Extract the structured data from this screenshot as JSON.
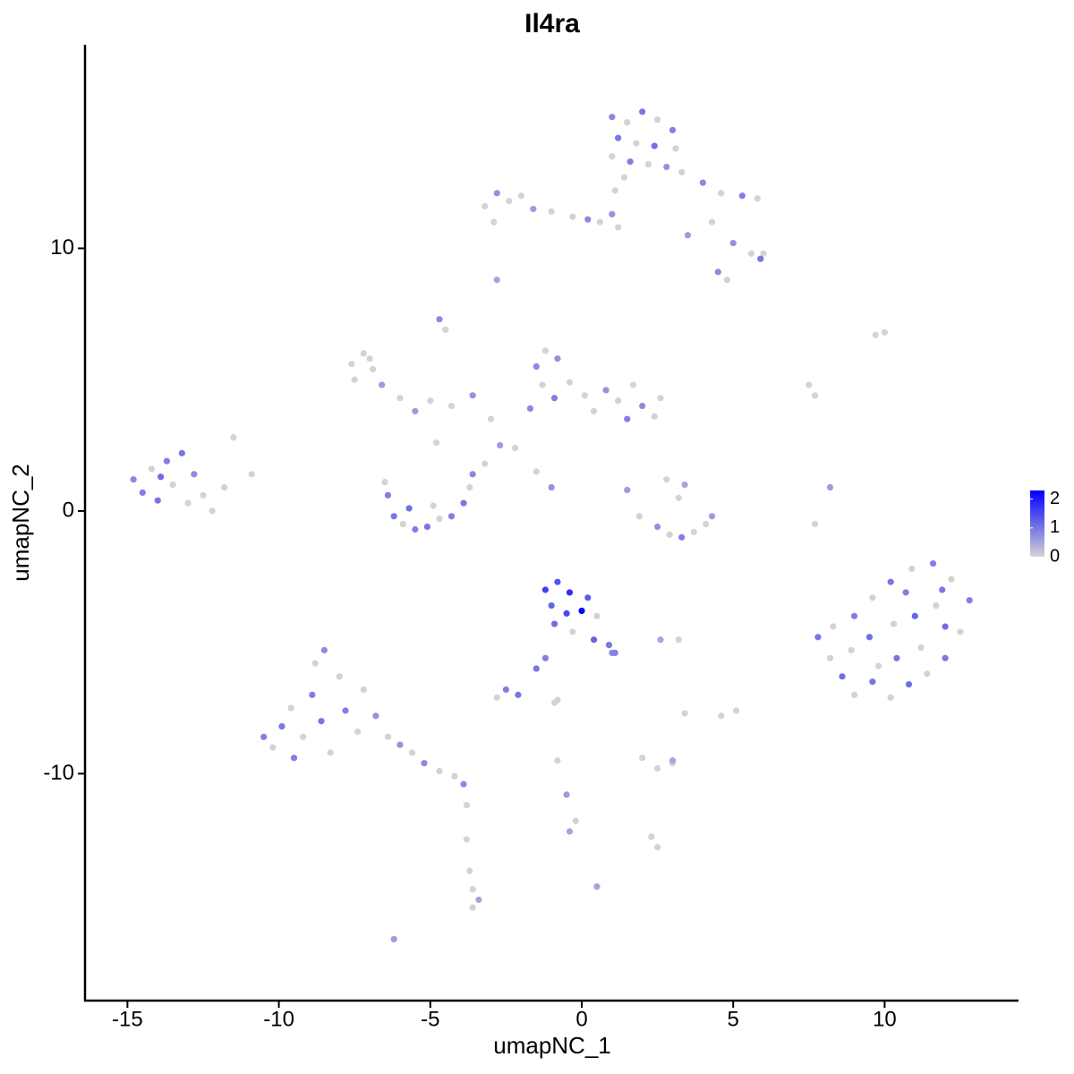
{
  "chart_data": {
    "type": "scatter",
    "title": "Il4ra",
    "x_label": "umapNC_1",
    "y_label": "umapNC_2",
    "xlim": [
      -16.4,
      14.42
    ],
    "ylim": [
      -18.64,
      17.75
    ],
    "xticks": [
      -15,
      -10,
      -5,
      0,
      5,
      10
    ],
    "yticks": [
      -10,
      0,
      10
    ],
    "colorbar": {
      "lim": [
        0,
        2.3
      ],
      "ticks": [
        0,
        1,
        2
      ],
      "low_color": "#d3d3d3",
      "high_color": "#0000ff"
    },
    "x": [
      1.0,
      1.5,
      2.0,
      2.5,
      3.0,
      1.2,
      1.8,
      2.4,
      3.1,
      1.0,
      1.6,
      2.2,
      2.8,
      3.3,
      1.4,
      4.0,
      4.6,
      5.3,
      5.8,
      4.3,
      5.0,
      5.6,
      5.9,
      4.5,
      4.8,
      3.5,
      6.0,
      -3.2,
      -2.8,
      -2.4,
      -2.0,
      -1.6,
      -1.0,
      -0.3,
      0.2,
      0.6,
      1.0,
      1.1,
      1.2,
      -2.9,
      -2.8,
      -4.7,
      -4.5,
      -7.6,
      -7.2,
      -6.9,
      -7.5,
      -6.6,
      -7.0,
      -5.5,
      -5.0,
      -4.3,
      -3.6,
      -3.0,
      -4.8,
      -2.7,
      -3.2,
      -2.2,
      -6.0,
      -1.5,
      -1.2,
      -0.8,
      -1.3,
      -0.9,
      -0.4,
      0.1,
      -1.7,
      0.8,
      1.2,
      1.7,
      2.0,
      2.4,
      2.6,
      1.5,
      0.4,
      -14.8,
      -14.5,
      -14.2,
      -14.0,
      -13.7,
      -13.5,
      -13.2,
      -13.0,
      -12.8,
      -12.5,
      -12.2,
      -11.8,
      -13.9,
      -11.5,
      -10.9,
      -6.4,
      -6.2,
      -5.9,
      -5.5,
      -5.1,
      -4.7,
      -4.3,
      -3.9,
      -3.7,
      -3.6,
      -5.7,
      -4.9,
      -6.5,
      1.9,
      2.5,
      2.9,
      3.3,
      3.7,
      4.1,
      4.3,
      3.2,
      3.4,
      2.8,
      1.5,
      -1.5,
      -1.0,
      -1.2,
      -0.8,
      -0.4,
      -1.0,
      -0.5,
      0.0,
      0.2,
      0.5,
      -0.9,
      -0.3,
      0.4,
      0.9,
      1.1,
      -1.2,
      -1.5,
      -2.5,
      -2.1,
      -2.8,
      -0.9,
      7.8,
      8.2,
      8.6,
      9.0,
      9.6,
      10.2,
      10.8,
      11.4,
      12.0,
      12.5,
      12.8,
      12.2,
      11.6,
      10.9,
      10.2,
      9.6,
      9.0,
      9.5,
      10.3,
      11.0,
      11.7,
      12.0,
      11.2,
      10.4,
      9.8,
      8.9,
      10.7,
      11.9,
      8.3,
      7.7,
      8.2,
      9.7,
      10.0,
      7.5,
      7.7,
      -10.5,
      -10.2,
      -9.9,
      -9.5,
      -9.6,
      -9.2,
      -8.9,
      -8.6,
      -8.3,
      -8.8,
      -8.5,
      -8.0,
      -7.8,
      -7.4,
      -7.2,
      -6.8,
      -6.4,
      -6.0,
      -5.6,
      -5.2,
      -4.7,
      -4.2,
      -3.9,
      -3.8,
      -3.8,
      -3.7,
      -3.6,
      -3.4,
      -3.6,
      -6.2,
      4.6,
      5.1,
      3.4,
      3.0,
      2.0,
      2.5,
      3.0,
      -0.8,
      -0.5,
      -0.2,
      -0.4,
      0.5,
      2.3,
      2.5,
      2.6,
      3.2,
      1.0,
      -0.8
    ],
    "y": [
      15.0,
      14.8,
      15.2,
      14.9,
      14.5,
      14.2,
      14.0,
      13.9,
      13.8,
      13.5,
      13.3,
      13.2,
      13.1,
      12.9,
      12.7,
      12.5,
      12.1,
      12.0,
      11.9,
      11.0,
      10.2,
      9.8,
      9.6,
      9.1,
      8.8,
      10.5,
      9.8,
      11.6,
      12.1,
      11.8,
      12.0,
      11.5,
      11.4,
      11.2,
      11.1,
      11.0,
      11.3,
      12.2,
      10.8,
      11.0,
      8.8,
      7.3,
      6.9,
      5.6,
      6.0,
      5.4,
      5.0,
      4.8,
      5.8,
      3.8,
      4.2,
      4.0,
      4.4,
      3.5,
      2.6,
      2.5,
      1.8,
      2.4,
      4.3,
      5.5,
      6.1,
      5.8,
      4.8,
      4.3,
      4.9,
      4.4,
      3.9,
      4.6,
      4.2,
      4.8,
      4.0,
      3.6,
      4.3,
      3.5,
      3.8,
      1.2,
      0.7,
      1.6,
      0.4,
      1.9,
      1.0,
      2.2,
      0.3,
      1.4,
      0.6,
      0.0,
      0.9,
      1.3,
      2.8,
      1.4,
      0.6,
      -0.2,
      -0.5,
      -0.7,
      -0.6,
      -0.3,
      -0.2,
      0.3,
      0.9,
      1.4,
      0.1,
      0.2,
      1.1,
      -0.2,
      -0.6,
      -0.9,
      -1.0,
      -0.8,
      -0.5,
      -0.2,
      0.5,
      1.0,
      1.2,
      0.8,
      1.5,
      0.9,
      -3.0,
      -2.7,
      -3.1,
      -3.6,
      -3.9,
      -3.8,
      -3.3,
      -4.0,
      -4.3,
      -4.6,
      -4.9,
      -5.1,
      -5.4,
      -5.6,
      -6.0,
      -6.8,
      -7.0,
      -7.1,
      -7.3,
      -4.8,
      -5.6,
      -6.3,
      -7.0,
      -6.5,
      -7.1,
      -6.6,
      -6.2,
      -5.6,
      -4.6,
      -3.4,
      -2.6,
      -2.0,
      -2.2,
      -2.7,
      -3.3,
      -4.0,
      -4.8,
      -4.3,
      -4.0,
      -3.6,
      -4.4,
      -5.2,
      -5.6,
      -5.9,
      -5.3,
      -3.1,
      -3.0,
      -4.4,
      -0.5,
      0.9,
      6.7,
      6.8,
      4.8,
      4.4,
      -8.6,
      -9.0,
      -8.2,
      -9.4,
      -7.5,
      -8.6,
      -7.0,
      -8.0,
      -9.2,
      -5.8,
      -5.3,
      -6.3,
      -7.6,
      -8.4,
      -6.8,
      -7.8,
      -8.6,
      -8.9,
      -9.2,
      -9.6,
      -9.9,
      -10.1,
      -10.4,
      -11.2,
      -12.5,
      -13.7,
      -14.4,
      -14.8,
      -15.1,
      -16.3,
      -7.8,
      -7.6,
      -7.7,
      -9.6,
      -9.4,
      -9.8,
      -9.5,
      -9.5,
      -10.8,
      -11.8,
      -12.2,
      -14.3,
      -12.4,
      -12.8,
      -4.9,
      -4.9,
      -5.4,
      -7.2
    ],
    "expression": [
      0.8,
      0,
      1.0,
      0,
      0.9,
      1.0,
      0,
      1.1,
      0,
      0,
      0.9,
      0,
      0.7,
      0,
      0,
      0.8,
      0,
      0.9,
      0,
      0,
      0.7,
      0,
      1.0,
      0.8,
      0,
      0.6,
      0,
      0,
      0.7,
      0,
      0,
      0.6,
      0,
      0,
      0.8,
      0,
      0.7,
      0,
      0,
      0,
      0.5,
      0.8,
      0,
      0,
      0,
      0,
      0,
      0.6,
      0,
      0.6,
      0,
      0,
      0.7,
      0,
      0,
      0.6,
      0,
      0,
      0,
      0.8,
      0,
      0.7,
      0,
      0.9,
      0,
      0,
      0.8,
      0.7,
      0,
      0,
      0.8,
      0,
      0,
      0.9,
      0,
      0.8,
      0.9,
      0,
      1.0,
      0.9,
      0,
      1.0,
      0,
      0.8,
      0,
      0,
      0,
      1.1,
      0,
      0,
      0.9,
      1.0,
      0,
      0.9,
      1.0,
      0,
      0.9,
      1.0,
      0,
      0.8,
      1.1,
      0,
      0,
      0,
      0.7,
      0,
      0.9,
      0,
      0,
      0.6,
      0,
      0.5,
      0,
      0.6,
      0,
      0.7,
      1.6,
      1.4,
      1.8,
      1.2,
      1.5,
      2.3,
      1.3,
      0,
      1.1,
      0,
      1.2,
      1.0,
      0.9,
      0.9,
      1.0,
      0.9,
      1.0,
      0,
      0,
      1.0,
      0,
      1.1,
      0,
      1.0,
      0,
      1.1,
      0,
      1.0,
      0,
      0.9,
      0,
      0.9,
      0,
      1.0,
      0,
      0.9,
      1.1,
      0,
      1.2,
      0,
      1.1,
      0,
      1.0,
      0,
      0,
      0.9,
      1.0,
      0,
      0,
      0.6,
      0,
      0,
      0,
      0,
      0.9,
      0,
      1.0,
      0.9,
      0,
      0,
      0.9,
      1.0,
      0,
      0,
      0.8,
      0,
      0.9,
      0,
      0,
      0.7,
      0,
      0.7,
      0,
      0.8,
      0,
      0,
      0.8,
      0,
      0,
      0,
      0,
      0.5,
      0,
      0.6,
      0,
      0,
      0,
      0,
      0,
      0,
      0.5,
      0,
      0.6,
      0,
      0.5,
      0.5,
      0,
      0,
      0.5,
      0,
      0.8,
      0
    ]
  }
}
